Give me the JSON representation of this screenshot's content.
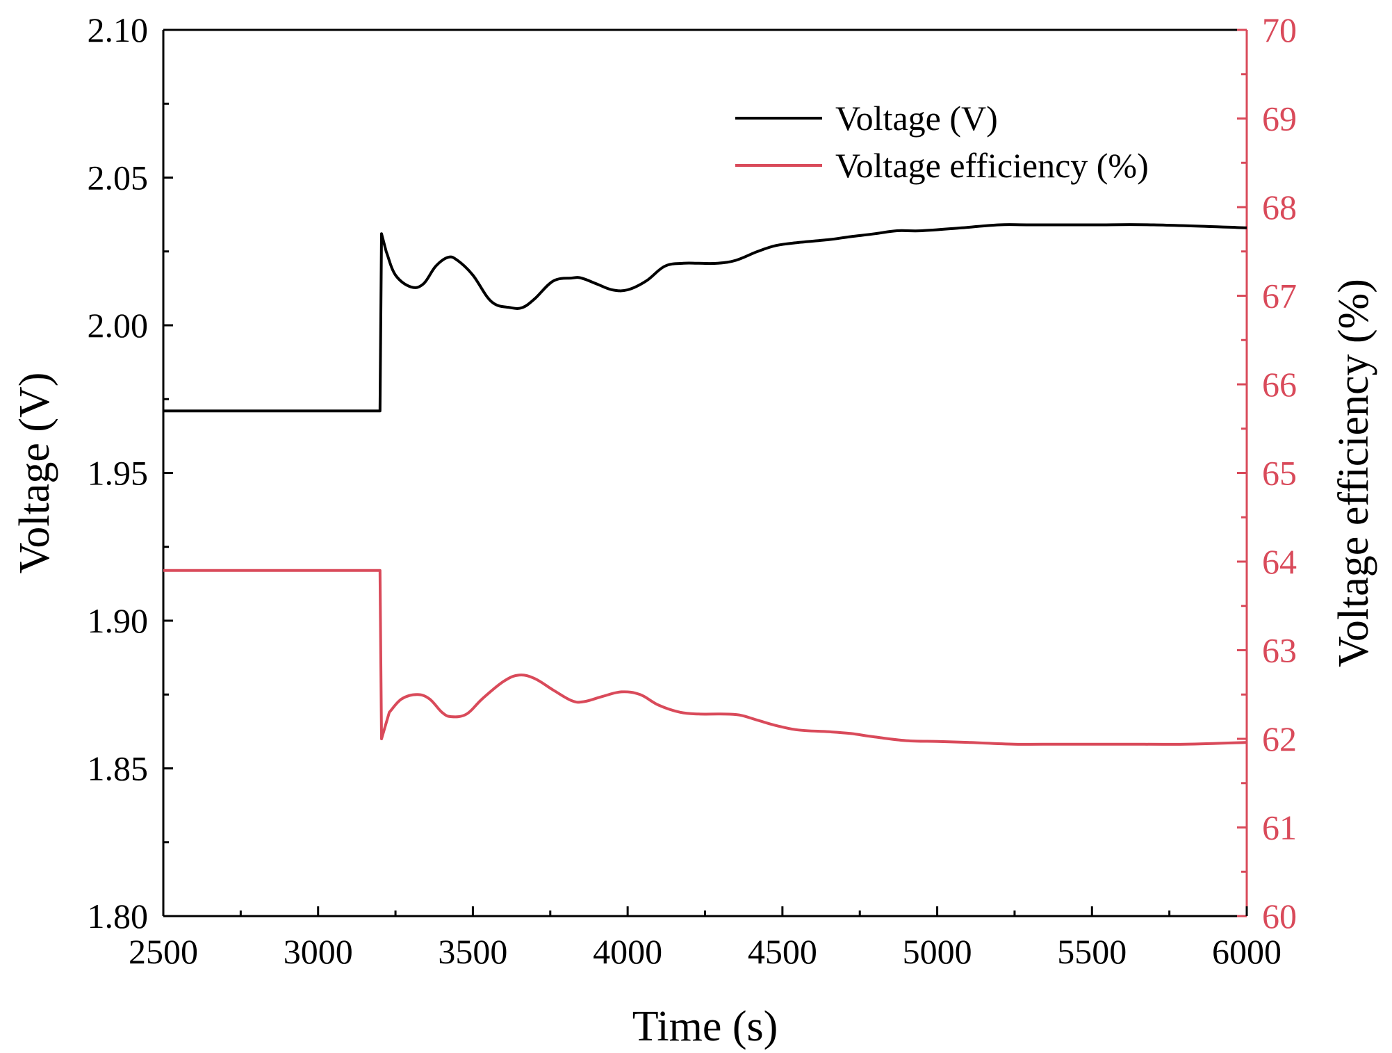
{
  "chart_data": {
    "type": "line",
    "title": "",
    "xlabel": "Time (s)",
    "ylabel": "Voltage (V)",
    "y2label": "Voltage efficiency (%)",
    "xlim": [
      2500,
      6000
    ],
    "ylim": [
      1.8,
      2.1
    ],
    "y2lim": [
      60,
      70
    ],
    "x_ticks": [
      "2500",
      "3000",
      "3500",
      "4000",
      "4500",
      "5000",
      "5500",
      "6000"
    ],
    "y_ticks": [
      "1.80",
      "1.85",
      "1.90",
      "1.95",
      "2.00",
      "2.05",
      "2.10"
    ],
    "y2_ticks": [
      "60",
      "61",
      "62",
      "63",
      "64",
      "65",
      "66",
      "67",
      "68",
      "69",
      "70"
    ],
    "legend_position": "top-right",
    "series": [
      {
        "name": "Voltage (V)",
        "axis": "left",
        "color": "#000000",
        "x": [
          2500,
          3195,
          3200,
          3205,
          3220,
          3250,
          3300,
          3340,
          3380,
          3420,
          3450,
          3500,
          3560,
          3620,
          3660,
          3700,
          3760,
          3820,
          3850,
          3900,
          3950,
          4000,
          4060,
          4120,
          4180,
          4230,
          4290,
          4350,
          4420,
          4480,
          4550,
          4650,
          4720,
          4800,
          4870,
          4950,
          5080,
          5200,
          5300,
          5500,
          5700,
          6000
        ],
        "values": [
          1.971,
          1.971,
          1.971,
          2.031,
          2.025,
          2.017,
          2.013,
          2.014,
          2.02,
          2.023,
          2.022,
          2.017,
          2.008,
          2.006,
          2.006,
          2.009,
          2.015,
          2.016,
          2.016,
          2.014,
          2.012,
          2.012,
          2.015,
          2.02,
          2.021,
          2.021,
          2.021,
          2.022,
          2.025,
          2.027,
          2.028,
          2.029,
          2.03,
          2.031,
          2.032,
          2.032,
          2.033,
          2.034,
          2.034,
          2.034,
          2.034,
          2.033
        ]
      },
      {
        "name": "Voltage efficiency (%)",
        "axis": "right",
        "color": "#d94a5a",
        "x": [
          2500,
          3195,
          3200,
          3205,
          3230,
          3270,
          3320,
          3360,
          3400,
          3430,
          3480,
          3530,
          3600,
          3650,
          3700,
          3760,
          3820,
          3860,
          3920,
          3980,
          4040,
          4100,
          4170,
          4230,
          4300,
          4360,
          4420,
          4480,
          4550,
          4650,
          4720,
          4800,
          4900,
          5000,
          5100,
          5250,
          5400,
          5600,
          5800,
          6000
        ],
        "values": [
          63.9,
          63.9,
          63.9,
          62.0,
          62.3,
          62.45,
          62.5,
          62.45,
          62.3,
          62.25,
          62.28,
          62.45,
          62.65,
          62.72,
          62.68,
          62.55,
          62.43,
          62.42,
          62.48,
          62.53,
          62.5,
          62.38,
          62.3,
          62.28,
          62.28,
          62.27,
          62.21,
          62.15,
          62.1,
          62.08,
          62.06,
          62.02,
          61.98,
          61.97,
          61.96,
          61.94,
          61.94,
          61.94,
          61.94,
          61.96
        ]
      }
    ]
  }
}
